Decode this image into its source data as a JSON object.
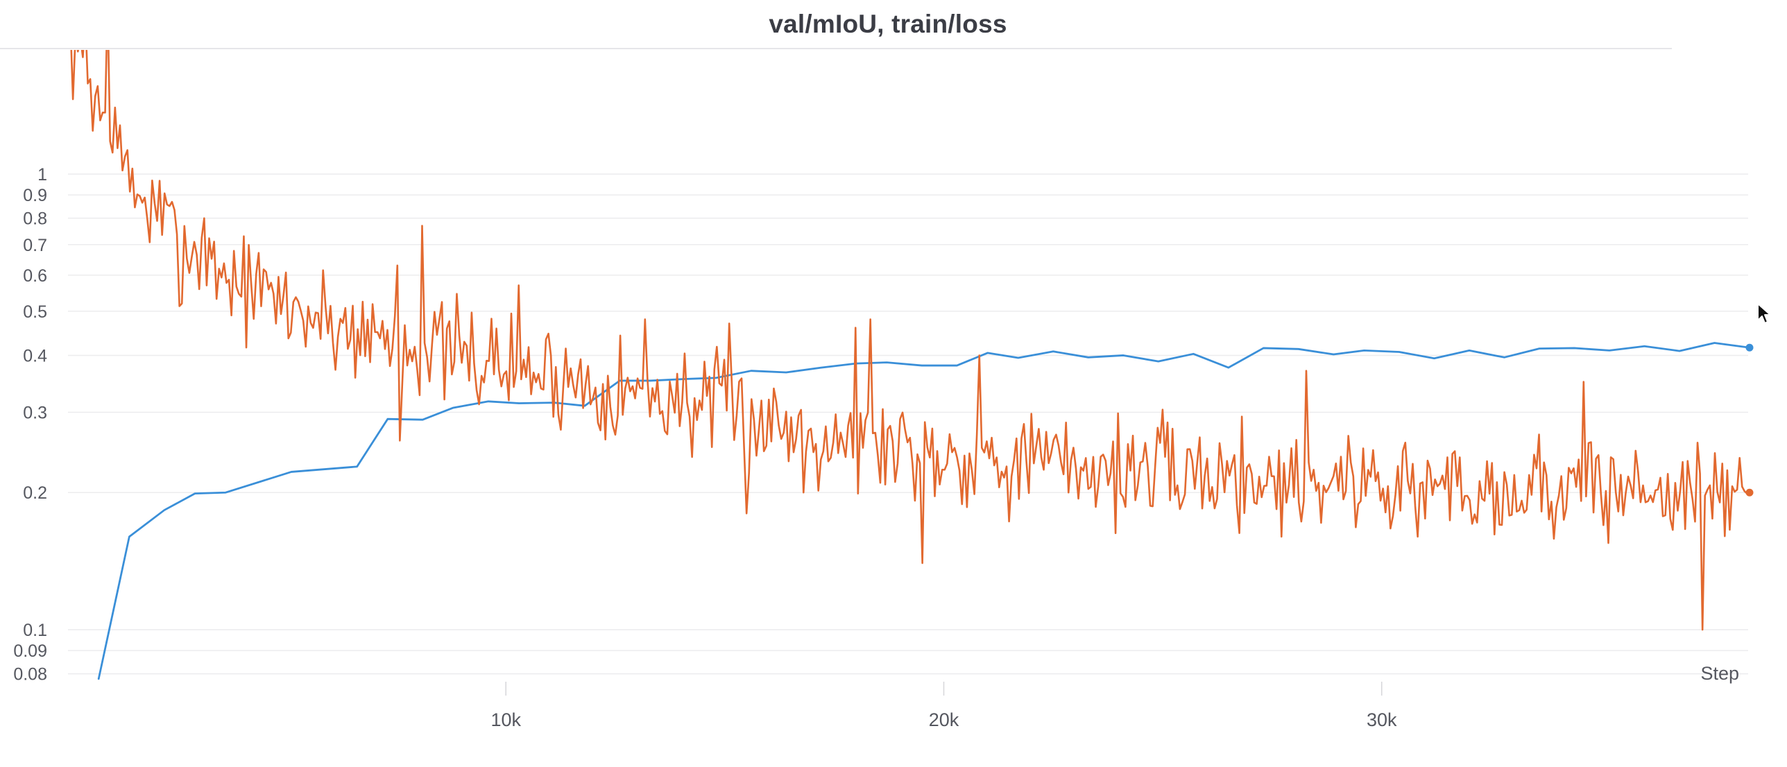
{
  "chart_data": {
    "type": "line",
    "title": "val/mIoU, train/loss",
    "xlabel": "Step",
    "ylabel": "",
    "x_scale": "linear",
    "y_scale": "log",
    "xlim": [
      0,
      37000
    ],
    "ylim": [
      0.075,
      2.4
    ],
    "grid": true,
    "legend": "none",
    "x_ticks": [
      {
        "value": 10000,
        "label": "10k"
      },
      {
        "value": 20000,
        "label": "20k"
      },
      {
        "value": 30000,
        "label": "30k"
      }
    ],
    "y_ticks": [
      {
        "value": 1,
        "label": "1"
      },
      {
        "value": 0.9,
        "label": "0.9"
      },
      {
        "value": 0.8,
        "label": "0.8"
      },
      {
        "value": 0.7,
        "label": "0.7"
      },
      {
        "value": 0.6,
        "label": "0.6"
      },
      {
        "value": 0.5,
        "label": "0.5"
      },
      {
        "value": 0.4,
        "label": "0.4"
      },
      {
        "value": 0.3,
        "label": "0.3"
      },
      {
        "value": 0.2,
        "label": "0.2"
      },
      {
        "value": 0.1,
        "label": "0.1"
      },
      {
        "value": 0.09,
        "label": "0.09"
      },
      {
        "value": 0.08,
        "label": "0.08"
      }
    ],
    "series": [
      {
        "id": "val-miou",
        "color": "#3a8fd8",
        "style": "polyline",
        "end_marker": true,
        "points": [
          [
            700,
            0.078
          ],
          [
            1400,
            0.16
          ],
          [
            2200,
            0.183
          ],
          [
            2900,
            0.199
          ],
          [
            3600,
            0.2
          ],
          [
            5100,
            0.222
          ],
          [
            6600,
            0.228
          ],
          [
            7300,
            0.29
          ],
          [
            8100,
            0.289
          ],
          [
            8800,
            0.307
          ],
          [
            9600,
            0.317
          ],
          [
            10300,
            0.314
          ],
          [
            11100,
            0.315
          ],
          [
            11800,
            0.31
          ],
          [
            12600,
            0.352
          ],
          [
            13300,
            0.352
          ],
          [
            14100,
            0.355
          ],
          [
            14800,
            0.357
          ],
          [
            15600,
            0.37
          ],
          [
            16400,
            0.367
          ],
          [
            17200,
            0.376
          ],
          [
            18000,
            0.384
          ],
          [
            18700,
            0.386
          ],
          [
            19500,
            0.38
          ],
          [
            20300,
            0.38
          ],
          [
            21000,
            0.405
          ],
          [
            21700,
            0.395
          ],
          [
            22500,
            0.408
          ],
          [
            23300,
            0.396
          ],
          [
            24100,
            0.4
          ],
          [
            24900,
            0.388
          ],
          [
            25700,
            0.403
          ],
          [
            26500,
            0.376
          ],
          [
            27300,
            0.415
          ],
          [
            28100,
            0.413
          ],
          [
            28900,
            0.402
          ],
          [
            29600,
            0.41
          ],
          [
            30400,
            0.407
          ],
          [
            31200,
            0.394
          ],
          [
            32000,
            0.41
          ],
          [
            32800,
            0.396
          ],
          [
            33600,
            0.414
          ],
          [
            34400,
            0.415
          ],
          [
            35200,
            0.41
          ],
          [
            36000,
            0.419
          ],
          [
            36800,
            0.409
          ],
          [
            37600,
            0.426
          ],
          [
            38400,
            0.416
          ]
        ]
      },
      {
        "id": "train-loss",
        "color": "#e2692f",
        "style": "noisy",
        "end_marker": true,
        "count": 680,
        "x_start": 0,
        "x_end": 38400,
        "seed": 7,
        "noise": 0.13,
        "trend": [
          [
            0,
            2.0
          ],
          [
            500,
            1.6
          ],
          [
            1000,
            1.2
          ],
          [
            1400,
            0.95
          ],
          [
            2500,
            0.72
          ],
          [
            4000,
            0.57
          ],
          [
            6000,
            0.47
          ],
          [
            8000,
            0.42
          ],
          [
            10000,
            0.38
          ],
          [
            12000,
            0.345
          ],
          [
            14000,
            0.32
          ],
          [
            16000,
            0.285
          ],
          [
            18000,
            0.265
          ],
          [
            20000,
            0.245
          ],
          [
            22000,
            0.235
          ],
          [
            24000,
            0.225
          ],
          [
            26000,
            0.22
          ],
          [
            28000,
            0.215
          ],
          [
            30000,
            0.21
          ],
          [
            32000,
            0.207
          ],
          [
            34000,
            0.205
          ],
          [
            38400,
            0.2
          ]
        ],
        "spikes": [
          [
            150,
            2.0
          ],
          [
            400,
            2.2
          ],
          [
            900,
            2.4
          ],
          [
            1100,
            1.4
          ],
          [
            2600,
            0.52
          ],
          [
            3100,
            0.8
          ],
          [
            7500,
            0.63
          ],
          [
            7550,
            0.26
          ],
          [
            8100,
            0.77
          ],
          [
            10300,
            0.57
          ],
          [
            13200,
            0.48
          ],
          [
            15100,
            0.47
          ],
          [
            15500,
            0.18
          ],
          [
            16800,
            0.2
          ],
          [
            18000,
            0.46
          ],
          [
            18300,
            0.48
          ],
          [
            19500,
            0.14
          ],
          [
            20800,
            0.4
          ],
          [
            27700,
            0.16
          ],
          [
            28300,
            0.37
          ],
          [
            30800,
            0.16
          ],
          [
            32700,
            0.17
          ],
          [
            34600,
            0.35
          ],
          [
            37300,
            0.1
          ],
          [
            38400,
            0.2
          ]
        ]
      }
    ]
  }
}
